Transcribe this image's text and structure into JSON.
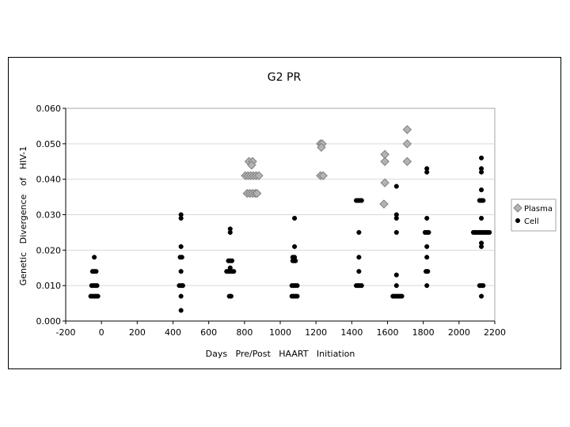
{
  "chart_data": {
    "type": "scatter",
    "title": "G2 PR",
    "xlabel": "Days   Pre/Post   HAART   Initiation",
    "ylabel": "Genetic   Divergence   of   HIV-1",
    "xlim": [
      -200,
      2200
    ],
    "ylim": [
      0,
      0.06
    ],
    "xticks": [
      -200,
      0,
      200,
      400,
      600,
      800,
      1000,
      1200,
      1400,
      1600,
      1800,
      2000,
      2200
    ],
    "xtick_labels": [
      "-200",
      "0",
      "200",
      "400",
      "600",
      "800",
      "1000",
      "1200",
      "1400",
      "1600",
      "1800",
      "2000",
      "2200"
    ],
    "yticks": [
      0,
      0.01,
      0.02,
      0.03,
      0.04,
      0.05,
      0.06
    ],
    "ytick_labels": [
      "0.000",
      "0.010",
      "0.020",
      "0.030",
      "0.040",
      "0.050",
      "0.060"
    ],
    "grid": "horizontal",
    "legend_position": "right",
    "series": [
      {
        "name": "Plasma",
        "marker": "diamond",
        "color": "#b3b3b3",
        "stroke": "#7f7f7f",
        "points": [
          [
            805,
            0.041
          ],
          [
            820,
            0.041
          ],
          [
            835,
            0.041
          ],
          [
            850,
            0.041
          ],
          [
            865,
            0.041
          ],
          [
            880,
            0.041
          ],
          [
            825,
            0.045
          ],
          [
            845,
            0.045
          ],
          [
            840,
            0.044
          ],
          [
            815,
            0.036
          ],
          [
            830,
            0.036
          ],
          [
            845,
            0.036
          ],
          [
            860,
            0.036
          ],
          [
            870,
            0.036
          ],
          [
            1225,
            0.05
          ],
          [
            1235,
            0.05
          ],
          [
            1230,
            0.049
          ],
          [
            1225,
            0.041
          ],
          [
            1240,
            0.041
          ],
          [
            1585,
            0.047
          ],
          [
            1585,
            0.045
          ],
          [
            1585,
            0.039
          ],
          [
            1580,
            0.033
          ],
          [
            1710,
            0.054
          ],
          [
            1710,
            0.05
          ],
          [
            1710,
            0.045
          ]
        ]
      },
      {
        "name": "Cell",
        "marker": "circle",
        "color": "#000000",
        "stroke": "#000000",
        "points": [
          [
            -40,
            0.018
          ],
          [
            -50,
            0.014
          ],
          [
            -40,
            0.014
          ],
          [
            -30,
            0.014
          ],
          [
            -55,
            0.01
          ],
          [
            -45,
            0.01
          ],
          [
            -35,
            0.01
          ],
          [
            -25,
            0.01
          ],
          [
            -60,
            0.007
          ],
          [
            -50,
            0.007
          ],
          [
            -40,
            0.007
          ],
          [
            -30,
            0.007
          ],
          [
            -20,
            0.007
          ],
          [
            445,
            0.03
          ],
          [
            445,
            0.029
          ],
          [
            445,
            0.021
          ],
          [
            440,
            0.018
          ],
          [
            450,
            0.018
          ],
          [
            445,
            0.014
          ],
          [
            435,
            0.01
          ],
          [
            445,
            0.01
          ],
          [
            455,
            0.01
          ],
          [
            445,
            0.007
          ],
          [
            445,
            0.003
          ],
          [
            720,
            0.026
          ],
          [
            720,
            0.025
          ],
          [
            710,
            0.017
          ],
          [
            720,
            0.017
          ],
          [
            730,
            0.017
          ],
          [
            700,
            0.014
          ],
          [
            710,
            0.014
          ],
          [
            720,
            0.014
          ],
          [
            730,
            0.014
          ],
          [
            740,
            0.014
          ],
          [
            720,
            0.015
          ],
          [
            715,
            0.007
          ],
          [
            725,
            0.007
          ],
          [
            1080,
            0.029
          ],
          [
            1080,
            0.021
          ],
          [
            1070,
            0.018
          ],
          [
            1080,
            0.018
          ],
          [
            1070,
            0.017
          ],
          [
            1080,
            0.017
          ],
          [
            1085,
            0.017
          ],
          [
            1065,
            0.01
          ],
          [
            1075,
            0.01
          ],
          [
            1085,
            0.01
          ],
          [
            1095,
            0.01
          ],
          [
            1065,
            0.007
          ],
          [
            1075,
            0.007
          ],
          [
            1085,
            0.007
          ],
          [
            1095,
            0.007
          ],
          [
            1425,
            0.034
          ],
          [
            1435,
            0.034
          ],
          [
            1445,
            0.034
          ],
          [
            1455,
            0.034
          ],
          [
            1440,
            0.025
          ],
          [
            1440,
            0.018
          ],
          [
            1440,
            0.014
          ],
          [
            1425,
            0.01
          ],
          [
            1435,
            0.01
          ],
          [
            1445,
            0.01
          ],
          [
            1455,
            0.01
          ],
          [
            1650,
            0.038
          ],
          [
            1650,
            0.03
          ],
          [
            1650,
            0.029
          ],
          [
            1650,
            0.025
          ],
          [
            1650,
            0.013
          ],
          [
            1650,
            0.01
          ],
          [
            1630,
            0.007
          ],
          [
            1640,
            0.007
          ],
          [
            1650,
            0.007
          ],
          [
            1660,
            0.007
          ],
          [
            1670,
            0.007
          ],
          [
            1680,
            0.007
          ],
          [
            1820,
            0.043
          ],
          [
            1820,
            0.042
          ],
          [
            1820,
            0.029
          ],
          [
            1810,
            0.025
          ],
          [
            1820,
            0.025
          ],
          [
            1830,
            0.025
          ],
          [
            1820,
            0.021
          ],
          [
            1820,
            0.018
          ],
          [
            1815,
            0.014
          ],
          [
            1825,
            0.014
          ],
          [
            1820,
            0.01
          ],
          [
            2125,
            0.046
          ],
          [
            2125,
            0.043
          ],
          [
            2125,
            0.042
          ],
          [
            2125,
            0.037
          ],
          [
            2115,
            0.034
          ],
          [
            2125,
            0.034
          ],
          [
            2135,
            0.034
          ],
          [
            2125,
            0.029
          ],
          [
            2080,
            0.025
          ],
          [
            2090,
            0.025
          ],
          [
            2100,
            0.025
          ],
          [
            2110,
            0.025
          ],
          [
            2120,
            0.025
          ],
          [
            2130,
            0.025
          ],
          [
            2140,
            0.025
          ],
          [
            2150,
            0.025
          ],
          [
            2160,
            0.025
          ],
          [
            2170,
            0.025
          ],
          [
            2125,
            0.022
          ],
          [
            2125,
            0.021
          ],
          [
            2115,
            0.01
          ],
          [
            2125,
            0.01
          ],
          [
            2135,
            0.01
          ],
          [
            2125,
            0.007
          ]
        ]
      }
    ]
  }
}
